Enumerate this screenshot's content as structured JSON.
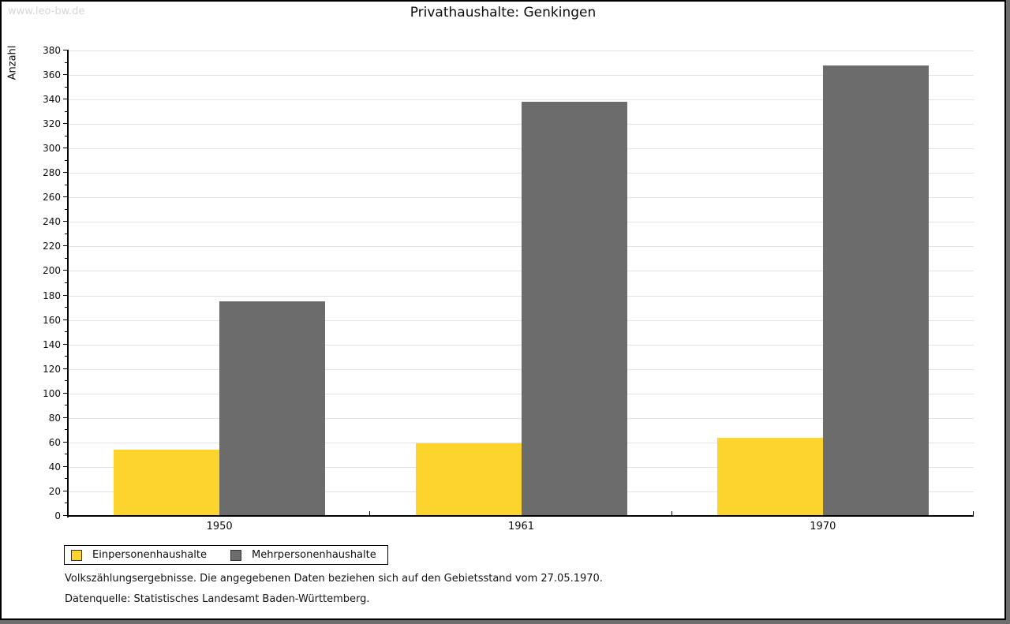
{
  "watermark": "www.leo-bw.de",
  "title": "Privathaushalte: Genkingen",
  "chart_data": {
    "type": "bar",
    "title": "Privathaushalte: Genkingen",
    "categories": [
      "1950",
      "1961",
      "1970"
    ],
    "series": [
      {
        "name": "Einpersonenhaushalte",
        "color": "#fcd42d",
        "values": [
          54,
          59,
          64
        ]
      },
      {
        "name": "Mehrpersonenhaushalte",
        "color": "#6c6c6c",
        "values": [
          175,
          338,
          368
        ]
      }
    ],
    "xlabel": "",
    "ylabel": "Anzahl",
    "ylim": [
      0,
      380
    ],
    "ytick_step": 20,
    "ytick_minor_step": 10,
    "grid": true,
    "gridline_color": "#e3e3e3",
    "legend_position": "bottom-left"
  },
  "footnotes": {
    "line1": "Volkszählungsergebnisse. Die angegebenen Daten beziehen sich auf den Gebietsstand vom 27.05.1970.",
    "line2": "Datenquelle: Statistisches Landesamt Baden-Württemberg."
  }
}
